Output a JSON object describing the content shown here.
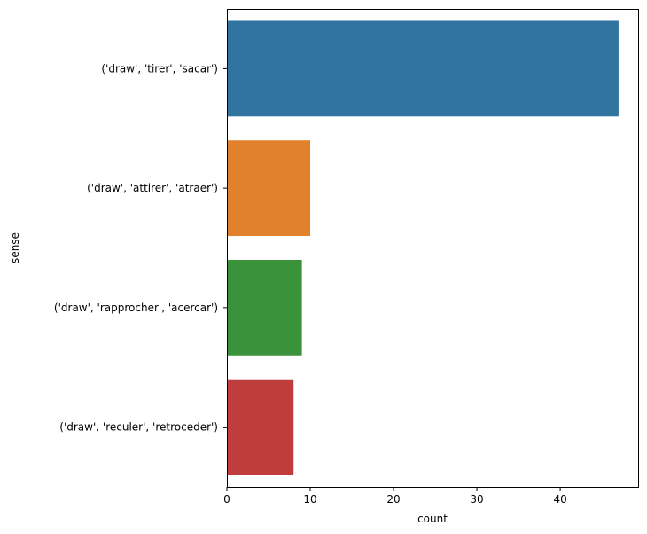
{
  "chart_data": {
    "type": "bar",
    "orientation": "horizontal",
    "categories": [
      "('draw', 'tirer', 'sacar')",
      "('draw', 'attirer', 'atraer')",
      "('draw', 'rapprocher', 'acercar')",
      "('draw', 'reculer', 'retroceder')"
    ],
    "values": [
      47,
      10,
      9,
      8
    ],
    "colors": [
      "#3274a1",
      "#e1812c",
      "#3a923a",
      "#c03d3e"
    ],
    "xlabel": "count",
    "ylabel": "sense",
    "xlim": [
      0,
      49.35
    ],
    "xticks": [
      0,
      10,
      20,
      30,
      40
    ],
    "xtick_labels": [
      "0",
      "10",
      "20",
      "30",
      "40"
    ],
    "grid": false,
    "legend": "none"
  }
}
